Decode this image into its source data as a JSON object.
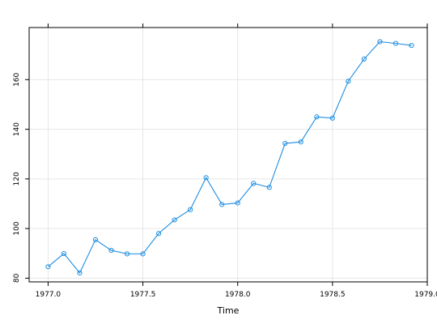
{
  "chart_data": {
    "type": "line",
    "title": "",
    "xlabel": "Time",
    "ylabel": "",
    "xlim": [
      1976.9,
      1979.0
    ],
    "ylim": [
      78.5,
      181
    ],
    "x_ticks": [
      1977.0,
      1977.5,
      1978.0,
      1978.5,
      1979.0
    ],
    "x_tick_labels": [
      "1977.0",
      "1977.5",
      "1978.0",
      "1978.5",
      "1979.0"
    ],
    "y_ticks": [
      80,
      100,
      120,
      140,
      160
    ],
    "y_tick_labels": [
      "80",
      "100",
      "120",
      "140",
      "160"
    ],
    "grid": true,
    "series": [
      {
        "color": "#1f8ee0",
        "markers": "open-circle",
        "x": [
          1977.0,
          1977.0833,
          1977.1667,
          1977.25,
          1977.3333,
          1977.4167,
          1977.5,
          1977.5833,
          1977.6667,
          1977.75,
          1977.8333,
          1977.9167,
          1978.0,
          1978.0833,
          1978.1667,
          1978.25,
          1978.3333,
          1978.4167,
          1978.5,
          1978.5833,
          1978.6667,
          1978.75,
          1978.8333,
          1978.9167
        ],
        "y": [
          84.6,
          89.9,
          82.1,
          95.5,
          91.2,
          89.8,
          89.8,
          98.0,
          103.5,
          107.6,
          120.5,
          109.7,
          110.3,
          118.2,
          116.6,
          134.3,
          134.9,
          145.0,
          144.5,
          159.4,
          168.3,
          175.3,
          174.6,
          173.8
        ]
      }
    ]
  }
}
